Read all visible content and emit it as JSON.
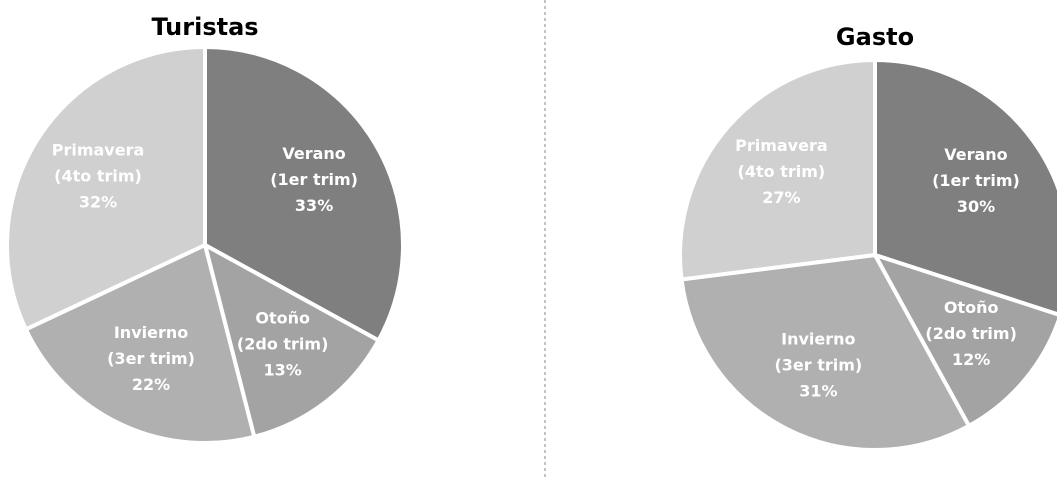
{
  "chart_data": [
    {
      "type": "pie",
      "title": "Turistas",
      "categories": [
        "Verano",
        "Otoño",
        "Invierno",
        "Primavera"
      ],
      "periods": [
        "(1er trim)",
        "(2do trim)",
        "(3er trim)",
        "(4to trim)"
      ],
      "values": [
        33,
        13,
        22,
        32
      ],
      "value_labels": [
        "33%",
        "13%",
        "22%",
        "32%"
      ],
      "colors": [
        "#7f7f7f",
        "#a3a3a3",
        "#b0b0b0",
        "#d0d0d0"
      ]
    },
    {
      "type": "pie",
      "title": "Gasto",
      "categories": [
        "Verano",
        "Otoño",
        "Invierno",
        "Primavera"
      ],
      "periods": [
        "(1er trim)",
        "(2do trim)",
        "(3er trim)",
        "(4to trim)"
      ],
      "values": [
        30,
        12,
        31,
        27
      ],
      "value_labels": [
        "30%",
        "12%",
        "31%",
        "27%"
      ],
      "colors": [
        "#7f7f7f",
        "#a3a3a3",
        "#b0b0b0",
        "#d0d0d0"
      ]
    }
  ]
}
